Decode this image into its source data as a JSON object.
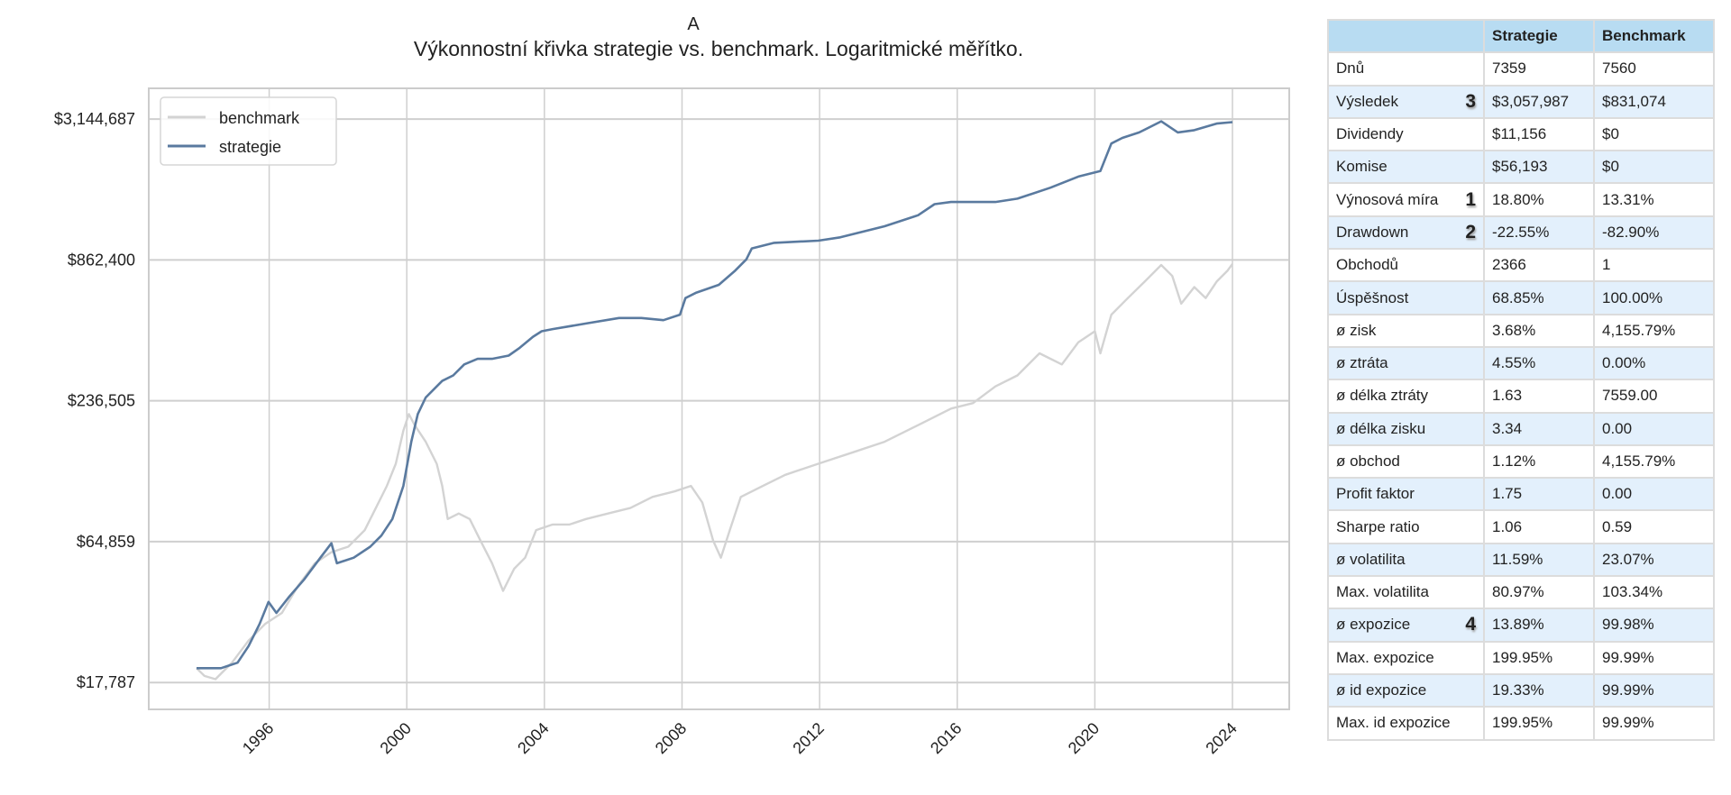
{
  "chart_data": {
    "type": "line",
    "panel_label": "A",
    "title": "Výkonnostní křivka strategie vs. benchmark. Logaritmické měřítko.",
    "xlabel": "",
    "ylabel": "",
    "yscale": "log",
    "xlim": [
      1992.5,
      2025.65
    ],
    "ylim": [
      13900,
      4170000
    ],
    "grid": true,
    "legend_position": "top-left",
    "x_ticks": [
      1996,
      2000,
      2004,
      2008,
      2012,
      2016,
      2020,
      2024
    ],
    "x_tick_labels": [
      "1996",
      "2000",
      "2004",
      "2008",
      "2012",
      "2016",
      "2020",
      "2024"
    ],
    "y_ticks": [
      17787,
      64859,
      236505,
      862400,
      3144687
    ],
    "y_tick_labels": [
      "$17,787",
      "$64,859",
      "$236,505",
      "$862,400",
      "$3,144,687"
    ],
    "series": [
      {
        "name": "benchmark",
        "color": "#d3d3d3",
        "x": [
          1993.89,
          1994.12,
          1994.44,
          1994.92,
          1995.4,
          1995.88,
          1996.37,
          1996.85,
          1997.33,
          1997.81,
          1998.3,
          1998.78,
          1999.1,
          1999.42,
          1999.68,
          1999.9,
          2000.06,
          2000.23,
          2000.55,
          2000.87,
          2001.03,
          2001.19,
          2001.51,
          2001.83,
          2002.15,
          2002.48,
          2002.8,
          2003.12,
          2003.44,
          2003.76,
          2004.24,
          2004.73,
          2005.21,
          2005.85,
          2006.5,
          2007.14,
          2007.78,
          2008.26,
          2008.59,
          2008.91,
          2009.13,
          2009.39,
          2009.71,
          2010.35,
          2011.0,
          2011.96,
          2012.93,
          2013.89,
          2014.86,
          2015.82,
          2016.46,
          2017.11,
          2017.75,
          2018.39,
          2019.04,
          2019.52,
          2020.0,
          2020.16,
          2020.48,
          2020.96,
          2021.45,
          2021.93,
          2022.25,
          2022.51,
          2022.89,
          2023.22,
          2023.54,
          2023.86,
          2024.0
        ],
        "values": [
          20300,
          18900,
          18340,
          21350,
          26150,
          30450,
          33700,
          43430,
          53200,
          58880,
          61950,
          72130,
          88360,
          108200,
          132600,
          179800,
          209300,
          189100,
          162400,
          132600,
          108200,
          79850,
          83970,
          79850,
          65200,
          53200,
          41290,
          50580,
          56000,
          72130,
          75900,
          75900,
          79850,
          83970,
          88360,
          97800,
          102900,
          108200,
          92950,
          65200,
          56000,
          72130,
          97800,
          108200,
          119800,
          132600,
          146700,
          162400,
          189100,
          220200,
          231600,
          269800,
          298500,
          365600,
          330400,
          404800,
          448000,
          365600,
          521500,
          607400,
          707100,
          823400,
          743900,
          577200,
          672100,
          607400,
          707100,
          782700,
          831074
        ]
      },
      {
        "name": "strategie",
        "color": "#5a7a9f",
        "x": [
          1993.89,
          1994.6,
          1995.08,
          1995.4,
          1995.72,
          1995.98,
          1996.21,
          1996.59,
          1997.01,
          1997.49,
          1997.81,
          1997.97,
          1998.46,
          1998.94,
          1999.26,
          1999.58,
          1999.9,
          2000.13,
          2000.32,
          2000.55,
          2000.87,
          2001.03,
          2001.35,
          2001.67,
          2002.06,
          2002.48,
          2002.96,
          2003.28,
          2003.67,
          2003.92,
          2004.24,
          2005.21,
          2006.17,
          2006.82,
          2007.46,
          2007.94,
          2008.1,
          2008.42,
          2009.07,
          2009.55,
          2009.87,
          2010.03,
          2010.68,
          2011.96,
          2012.6,
          2013.89,
          2014.86,
          2015.34,
          2015.82,
          2017.11,
          2017.75,
          2018.71,
          2019.52,
          2020.16,
          2020.48,
          2020.8,
          2021.29,
          2021.93,
          2022.41,
          2022.89,
          2023.54,
          2024.0
        ],
        "values": [
          20300,
          20300,
          21350,
          24860,
          30450,
          37300,
          33700,
          39250,
          45700,
          56000,
          63900,
          53200,
          56000,
          61950,
          68600,
          79850,
          108200,
          162400,
          209300,
          243700,
          269800,
          283800,
          298500,
          330400,
          347600,
          347600,
          358300,
          384800,
          425900,
          448000,
          457100,
          481000,
          505900,
          505900,
          495800,
          521500,
          607400,
          639000,
          686000,
          782700,
          866200,
          958900,
          1009000,
          1029000,
          1061000,
          1175000,
          1300000,
          1439000,
          1468000,
          1468000,
          1514000,
          1675000,
          1854000,
          1950000,
          2513000,
          2644000,
          2782000,
          3079000,
          2782000,
          2839000,
          3016000,
          3057987
        ]
      }
    ]
  },
  "table": {
    "headers": [
      "",
      "Strategie",
      "Benchmark"
    ],
    "rows": [
      {
        "label": "Dnů",
        "mark": "",
        "strategie": "7359",
        "benchmark": "7560"
      },
      {
        "label": "Výsledek",
        "mark": "3",
        "strategie": "$3,057,987",
        "benchmark": "$831,074"
      },
      {
        "label": "Dividendy",
        "mark": "",
        "strategie": "$11,156",
        "benchmark": "$0"
      },
      {
        "label": "Komise",
        "mark": "",
        "strategie": "$56,193",
        "benchmark": "$0"
      },
      {
        "label": "Výnosová míra",
        "mark": "1",
        "strategie": "18.80%",
        "benchmark": "13.31%"
      },
      {
        "label": "Drawdown",
        "mark": "2",
        "strategie": "-22.55%",
        "benchmark": "-82.90%"
      },
      {
        "label": "Obchodů",
        "mark": "",
        "strategie": "2366",
        "benchmark": "1"
      },
      {
        "label": "Úspěšnost",
        "mark": "",
        "strategie": "68.85%",
        "benchmark": "100.00%"
      },
      {
        "label": "ø zisk",
        "mark": "",
        "strategie": "3.68%",
        "benchmark": "4,155.79%"
      },
      {
        "label": "ø ztráta",
        "mark": "",
        "strategie": "4.55%",
        "benchmark": "0.00%"
      },
      {
        "label": "ø délka ztráty",
        "mark": "",
        "strategie": "1.63",
        "benchmark": "7559.00"
      },
      {
        "label": "ø délka zisku",
        "mark": "",
        "strategie": "3.34",
        "benchmark": "0.00"
      },
      {
        "label": "ø obchod",
        "mark": "",
        "strategie": "1.12%",
        "benchmark": "4,155.79%"
      },
      {
        "label": "Profit faktor",
        "mark": "",
        "strategie": "1.75",
        "benchmark": "0.00"
      },
      {
        "label": "Sharpe ratio",
        "mark": "",
        "strategie": "1.06",
        "benchmark": "0.59"
      },
      {
        "label": "ø volatilita",
        "mark": "",
        "strategie": "11.59%",
        "benchmark": "23.07%"
      },
      {
        "label": "Max. volatilita",
        "mark": "",
        "strategie": "80.97%",
        "benchmark": "103.34%"
      },
      {
        "label": "ø expozice",
        "mark": "4",
        "strategie": "13.89%",
        "benchmark": "99.98%"
      },
      {
        "label": "Max. expozice",
        "mark": "",
        "strategie": "199.95%",
        "benchmark": "99.99%"
      },
      {
        "label": "ø id expozice",
        "mark": "",
        "strategie": "19.33%",
        "benchmark": "99.99%"
      },
      {
        "label": "Max. id expozice",
        "mark": "",
        "strategie": "199.95%",
        "benchmark": "99.99%"
      }
    ]
  }
}
